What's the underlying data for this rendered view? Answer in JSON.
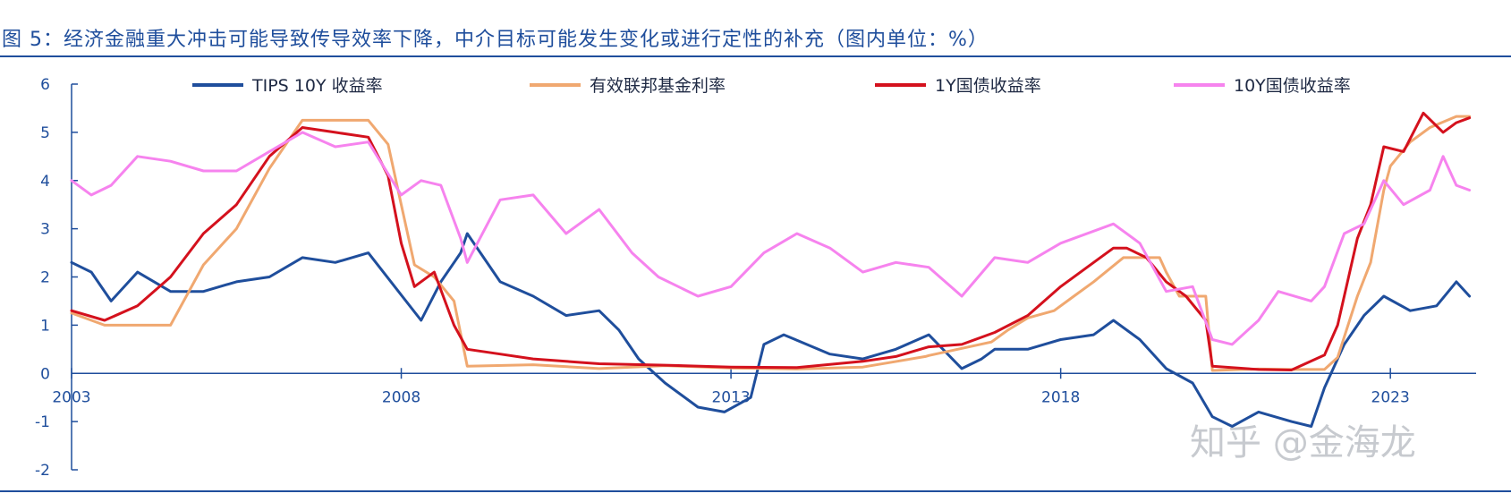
{
  "title": "图 5：经济金融重大冲击可能导致传导效率下降，中介目标可能发生变化或进行定性的补充（图内单位：%）",
  "watermark": "知乎 @金海龙",
  "colors": {
    "accent": "#1f4e9c"
  },
  "chart_data": {
    "type": "line",
    "ylim": [
      -2,
      6
    ],
    "yticks": [
      "-2",
      "-1",
      "0",
      "1",
      "2",
      "3",
      "4",
      "5",
      "6"
    ],
    "xlim": [
      2003.0,
      2024.3
    ],
    "xticks": [
      {
        "value": 2003,
        "label": "2003"
      },
      {
        "value": 2008,
        "label": "2008"
      },
      {
        "value": 2013,
        "label": "2013"
      },
      {
        "value": 2018,
        "label": "2018"
      },
      {
        "value": 2023,
        "label": "2023"
      }
    ],
    "grid": false,
    "legend_position": "top",
    "series": [
      {
        "name": "TIPS 10Y 收益率",
        "color": "#1f4e9c",
        "width": 3,
        "x": [
          2003.0,
          2003.3,
          2003.6,
          2004.0,
          2004.5,
          2005.0,
          2005.5,
          2006.0,
          2006.5,
          2007.0,
          2007.5,
          2007.9,
          2008.3,
          2008.6,
          2008.9,
          2009.0,
          2009.5,
          2010.0,
          2010.5,
          2011.0,
          2011.3,
          2011.6,
          2012.0,
          2012.5,
          2012.9,
          2013.3,
          2013.5,
          2013.8,
          2014.5,
          2015.0,
          2015.5,
          2016.0,
          2016.5,
          2016.8,
          2017.0,
          2017.5,
          2018.0,
          2018.5,
          2018.8,
          2019.2,
          2019.6,
          2020.0,
          2020.3,
          2020.6,
          2021.0,
          2021.5,
          2021.8,
          2022.0,
          2022.3,
          2022.6,
          2022.9,
          2023.3,
          2023.7,
          2024.0,
          2024.2
        ],
        "y": [
          2.3,
          2.1,
          1.5,
          2.1,
          1.7,
          1.7,
          1.9,
          2.0,
          2.4,
          2.3,
          2.5,
          1.8,
          1.1,
          1.9,
          2.5,
          2.9,
          1.9,
          1.6,
          1.2,
          1.3,
          0.9,
          0.3,
          -0.2,
          -0.7,
          -0.8,
          -0.5,
          0.6,
          0.8,
          0.4,
          0.3,
          0.5,
          0.8,
          0.1,
          0.3,
          0.5,
          0.5,
          0.7,
          0.8,
          1.1,
          0.7,
          0.1,
          -0.2,
          -0.9,
          -1.1,
          -0.8,
          -1.0,
          -1.1,
          -0.3,
          0.6,
          1.2,
          1.6,
          1.3,
          1.4,
          1.9,
          1.6
        ]
      },
      {
        "name": "有效联邦基金利率",
        "color": "#f0a870",
        "width": 3,
        "x": [
          2003.0,
          2003.5,
          2004.5,
          2005.0,
          2005.5,
          2006.0,
          2006.5,
          2007.5,
          2007.8,
          2008.0,
          2008.2,
          2008.5,
          2008.8,
          2009.0,
          2010.0,
          2011.0,
          2012.0,
          2013.0,
          2014.0,
          2015.0,
          2015.95,
          2016.0,
          2016.95,
          2017.2,
          2017.5,
          2017.9,
          2018.2,
          2018.5,
          2018.95,
          2019.5,
          2019.6,
          2019.8,
          2020.2,
          2020.3,
          2021.0,
          2021.5,
          2022.0,
          2022.2,
          2022.5,
          2022.7,
          2022.9,
          2023.0,
          2023.3,
          2023.6,
          2024.0,
          2024.2
        ],
        "y": [
          1.25,
          1.0,
          1.0,
          2.25,
          3.0,
          4.25,
          5.25,
          5.25,
          4.75,
          3.5,
          2.25,
          2.0,
          1.5,
          0.15,
          0.18,
          0.1,
          0.16,
          0.11,
          0.09,
          0.13,
          0.35,
          0.37,
          0.65,
          0.9,
          1.15,
          1.3,
          1.6,
          1.9,
          2.4,
          2.4,
          2.1,
          1.6,
          1.6,
          0.06,
          0.09,
          0.08,
          0.08,
          0.33,
          1.6,
          2.3,
          3.8,
          4.3,
          4.8,
          5.1,
          5.33,
          5.33
        ]
      },
      {
        "name": "1Y国债收益率",
        "color": "#d4111d",
        "width": 3,
        "x": [
          2003.0,
          2003.5,
          2004.0,
          2004.5,
          2005.0,
          2005.5,
          2006.0,
          2006.5,
          2007.0,
          2007.5,
          2007.8,
          2008.0,
          2008.2,
          2008.5,
          2008.8,
          2009.0,
          2009.5,
          2010.0,
          2011.0,
          2012.0,
          2013.0,
          2014.0,
          2015.0,
          2015.5,
          2016.0,
          2016.5,
          2017.0,
          2017.5,
          2018.0,
          2018.5,
          2018.8,
          2019.0,
          2019.3,
          2019.6,
          2019.9,
          2020.2,
          2020.3,
          2021.0,
          2021.5,
          2022.0,
          2022.2,
          2022.5,
          2022.7,
          2022.9,
          2023.2,
          2023.5,
          2023.8,
          2024.0,
          2024.2
        ],
        "y": [
          1.3,
          1.1,
          1.4,
          2.0,
          2.9,
          3.5,
          4.5,
          5.1,
          5.0,
          4.9,
          4.1,
          2.7,
          1.8,
          2.1,
          1.0,
          0.5,
          0.4,
          0.3,
          0.2,
          0.17,
          0.13,
          0.12,
          0.25,
          0.35,
          0.55,
          0.6,
          0.85,
          1.2,
          1.8,
          2.3,
          2.6,
          2.6,
          2.4,
          1.9,
          1.6,
          1.1,
          0.15,
          0.08,
          0.07,
          0.38,
          1.0,
          2.8,
          3.5,
          4.7,
          4.6,
          5.4,
          5.0,
          5.2,
          5.3
        ]
      },
      {
        "name": "10Y国债收益率",
        "color": "#f683ee",
        "width": 3,
        "x": [
          2003.0,
          2003.3,
          2003.6,
          2004.0,
          2004.5,
          2005.0,
          2005.5,
          2006.0,
          2006.5,
          2007.0,
          2007.5,
          2008.0,
          2008.3,
          2008.6,
          2008.9,
          2009.0,
          2009.5,
          2010.0,
          2010.5,
          2011.0,
          2011.5,
          2011.9,
          2012.5,
          2013.0,
          2013.5,
          2014.0,
          2014.5,
          2015.0,
          2015.5,
          2016.0,
          2016.5,
          2017.0,
          2017.5,
          2018.0,
          2018.8,
          2019.2,
          2019.6,
          2020.0,
          2020.3,
          2020.6,
          2021.0,
          2021.3,
          2021.8,
          2022.0,
          2022.3,
          2022.6,
          2022.9,
          2023.2,
          2023.6,
          2023.8,
          2024.0,
          2024.2
        ],
        "y": [
          4.0,
          3.7,
          3.9,
          4.5,
          4.4,
          4.2,
          4.2,
          4.6,
          5.0,
          4.7,
          4.8,
          3.7,
          4.0,
          3.9,
          2.8,
          2.3,
          3.6,
          3.7,
          2.9,
          3.4,
          2.5,
          2.0,
          1.6,
          1.8,
          2.5,
          2.9,
          2.6,
          2.1,
          2.3,
          2.2,
          1.6,
          2.4,
          2.3,
          2.7,
          3.1,
          2.7,
          1.7,
          1.8,
          0.7,
          0.6,
          1.1,
          1.7,
          1.5,
          1.8,
          2.9,
          3.1,
          4.0,
          3.5,
          3.8,
          4.5,
          3.9,
          3.8
        ]
      }
    ]
  }
}
